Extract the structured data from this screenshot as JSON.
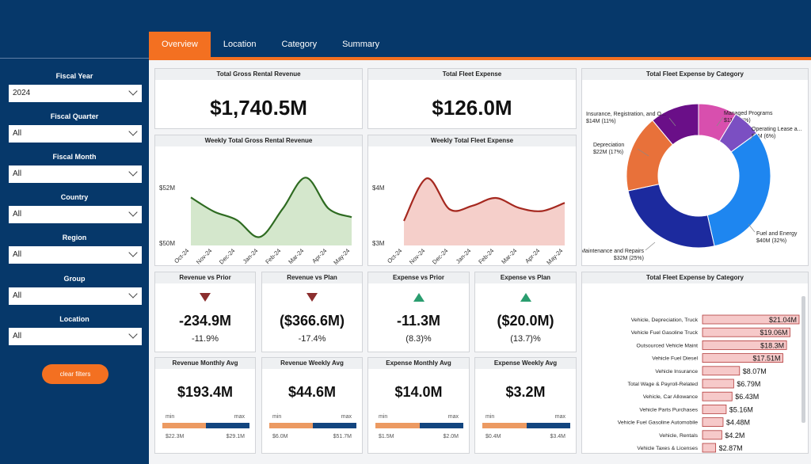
{
  "tabs": [
    {
      "label": "Overview"
    },
    {
      "label": "Location"
    },
    {
      "label": "Category"
    },
    {
      "label": "Summary"
    }
  ],
  "filters": [
    {
      "label": "Fiscal Year",
      "value": "2024"
    },
    {
      "label": "Fiscal Quarter",
      "value": "All"
    },
    {
      "label": "Fiscal Month",
      "value": "All"
    },
    {
      "label": "Country",
      "value": "All"
    },
    {
      "label": "Region",
      "value": "All"
    },
    {
      "label": "Group",
      "value": "All"
    },
    {
      "label": "Location",
      "value": "All"
    }
  ],
  "clear_filters": "clear filters",
  "kpi_revenue": {
    "title": "Total Gross Rental Revenue",
    "value": "$1,740.5M"
  },
  "kpi_expense": {
    "title": "Total Fleet Expense",
    "value": "$126.0M"
  },
  "weekly_revenue": {
    "title": "Weekly Total Gross Rental Revenue",
    "ytick_top": "$52M",
    "ytick_bottom": "$50M",
    "categories": [
      "Oct-24",
      "Nov-24",
      "Dec-24",
      "Jan-24",
      "Feb-24",
      "Mar-24",
      "Apr-24",
      "May-24"
    ],
    "values": [
      51.5,
      51.0,
      50.7,
      50.1,
      51.1,
      52.2,
      51.1,
      50.8
    ],
    "ylim": [
      49.8,
      52.6
    ],
    "color": "#2e6b21",
    "fill": "#d4e7cc"
  },
  "weekly_expense": {
    "title": "Weekly Total Fleet Expense",
    "ytick_top": "$4M",
    "ytick_bottom": "$3M",
    "categories": [
      "Oct-24",
      "Nov-24",
      "Dec-24",
      "Jan-24",
      "Feb-24",
      "Mar-24",
      "Apr-24",
      "May-24"
    ],
    "values": [
      3.4,
      4.18,
      3.61,
      3.68,
      3.82,
      3.64,
      3.58,
      3.73
    ],
    "ylim": [
      2.95,
      4.4
    ],
    "color": "#a5281f",
    "fill": "#f5cfca"
  },
  "variances": [
    {
      "title": "Revenue vs Prior",
      "direction": "down",
      "value": "-234.9M",
      "pct": "-11.9%"
    },
    {
      "title": "Revenue vs Plan",
      "direction": "down",
      "value": "($366.6M)",
      "pct": "-17.4%"
    },
    {
      "title": "Expense vs Prior",
      "direction": "up",
      "value": "-11.3M",
      "pct": "(8.3)%"
    },
    {
      "title": "Expense vs Plan",
      "direction": "up",
      "value": "($20.0M)",
      "pct": "(13.7)%"
    }
  ],
  "averages": [
    {
      "title": "Revenue Monthly Avg",
      "value": "$193.4M",
      "min_label": "min",
      "max_label": "max",
      "min": "$22.3M",
      "max": "$29.1M",
      "position": 0.5
    },
    {
      "title": "Revenue Weekly Avg",
      "value": "$44.6M",
      "min_label": "min",
      "max_label": "max",
      "min": "$6.0M",
      "max": "$51.7M",
      "position": 0.5
    },
    {
      "title": "Expense Monthly Avg",
      "value": "$14.0M",
      "min_label": "min",
      "max_label": "max",
      "min": "$1.5M",
      "max": "$2.0M",
      "position": 0.5
    },
    {
      "title": "Expense Weekly Avg",
      "value": "$3.2M",
      "min_label": "min",
      "max_label": "max",
      "min": "$0.4M",
      "max": "$3.4M",
      "position": 0.5
    }
  ],
  "chart_data": [
    {
      "type": "line",
      "title": "Weekly Total Gross Rental Revenue",
      "categories": [
        "Oct-24",
        "Nov-24",
        "Dec-24",
        "Jan-24",
        "Feb-24",
        "Mar-24",
        "Apr-24",
        "May-24"
      ],
      "series": [
        {
          "values": [
            51.5,
            51.0,
            50.7,
            50.1,
            51.1,
            52.2,
            51.1,
            50.8
          ]
        }
      ],
      "yticks": [
        "$52M",
        "$50M"
      ]
    },
    {
      "type": "line",
      "title": "Weekly Total Fleet Expense",
      "categories": [
        "Oct-24",
        "Nov-24",
        "Dec-24",
        "Jan-24",
        "Feb-24",
        "Mar-24",
        "Apr-24",
        "May-24"
      ],
      "series": [
        {
          "values": [
            3.4,
            4.18,
            3.61,
            3.68,
            3.82,
            3.64,
            3.58,
            3.73
          ]
        }
      ],
      "yticks": [
        "$4M",
        "$3M"
      ]
    },
    {
      "type": "pie",
      "title": "Total Fleet Expense by Category",
      "slices": [
        {
          "name": "Managed Programs",
          "value": 11,
          "value_label": "$11M (9%)",
          "color": "#d84fae"
        },
        {
          "name": "Operating Lease a...",
          "value": 8,
          "value_label": "$8M (6%)",
          "color": "#7b4fc2"
        },
        {
          "name": "Fuel and Energy",
          "value": 40,
          "value_label": "$40M (32%)",
          "color": "#1e86f0"
        },
        {
          "name": "Maintenance and Repairs",
          "value": 32,
          "value_label": "$32M (25%)",
          "color": "#1c2a9e"
        },
        {
          "name": "Depreciation",
          "value": 22,
          "value_label": "$22M (17%)",
          "color": "#e8713a"
        },
        {
          "name": "Insurance, Registration, and O...",
          "value": 14,
          "value_label": "$14M (11%)",
          "color": "#6a0f88"
        }
      ]
    },
    {
      "type": "bar",
      "title": "Total Fleet Expense by Category",
      "categories": [
        "Vehicle, Depreciation, Truck",
        "Vehicle Fuel Gasoline Truck",
        "Outsourced Vehicle Maint",
        "Vehicle Fuel Diesel",
        "Vehicle Insurance",
        "Total Wage & Payroll-Related",
        "Vehicle, Car Allowance",
        "Vehicle Parts Purchases",
        "Vehicle Fuel Gasoline Automobile",
        "Vehicle, Rentals",
        "Vehicle Taxes & Licenses"
      ],
      "values": [
        21.04,
        19.06,
        18.3,
        17.51,
        8.07,
        6.79,
        6.43,
        5.16,
        4.48,
        4.2,
        2.87
      ],
      "value_labels": [
        "$21.04M",
        "$19.06M",
        "$18.3M",
        "$17.51M",
        "$8.07M",
        "$6.79M",
        "$6.43M",
        "$5.16M",
        "$4.48M",
        "$4.2M",
        "$2.87M"
      ],
      "bar_color": "#f6c9c9"
    }
  ]
}
